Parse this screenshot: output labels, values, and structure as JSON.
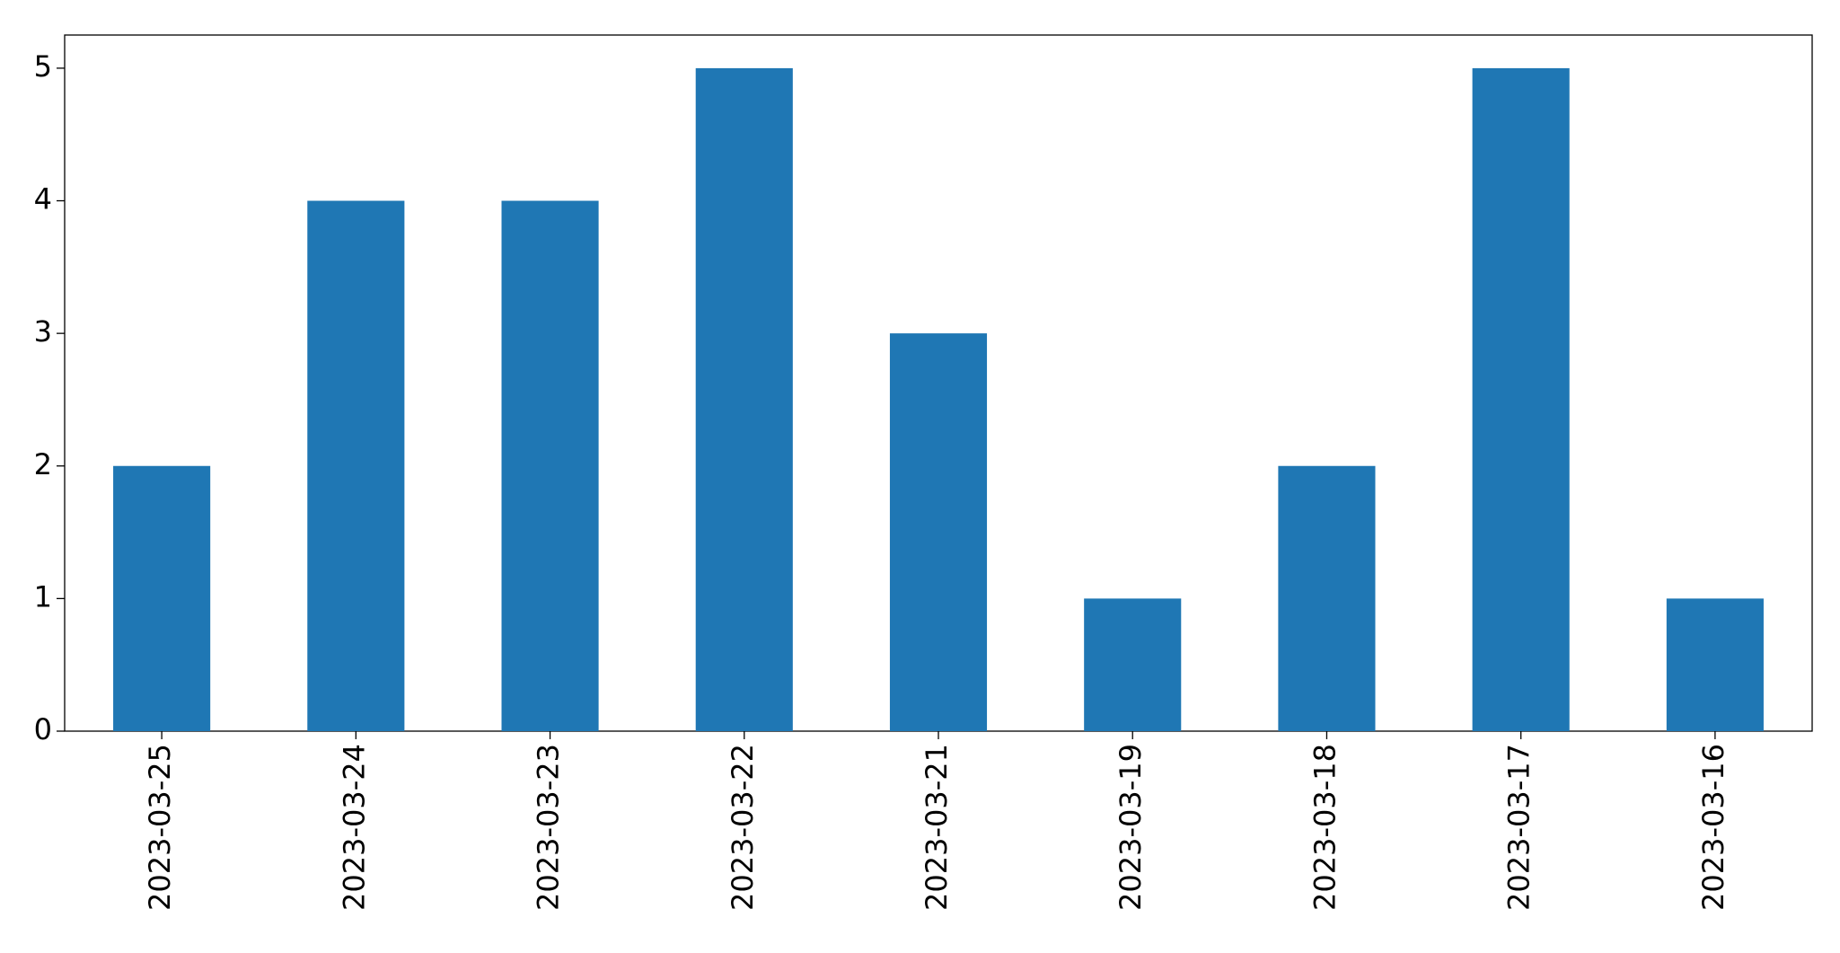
{
  "chart_data": {
    "type": "bar",
    "categories": [
      "2023-03-25",
      "2023-03-24",
      "2023-03-23",
      "2023-03-22",
      "2023-03-21",
      "2023-03-19",
      "2023-03-18",
      "2023-03-17",
      "2023-03-16"
    ],
    "values": [
      2,
      4,
      4,
      5,
      3,
      1,
      2,
      5,
      1
    ],
    "color": "#1f77b4",
    "ylim": [
      0,
      5.25
    ],
    "yticks": [
      0,
      1,
      2,
      3,
      4,
      5
    ],
    "grid": false
  }
}
